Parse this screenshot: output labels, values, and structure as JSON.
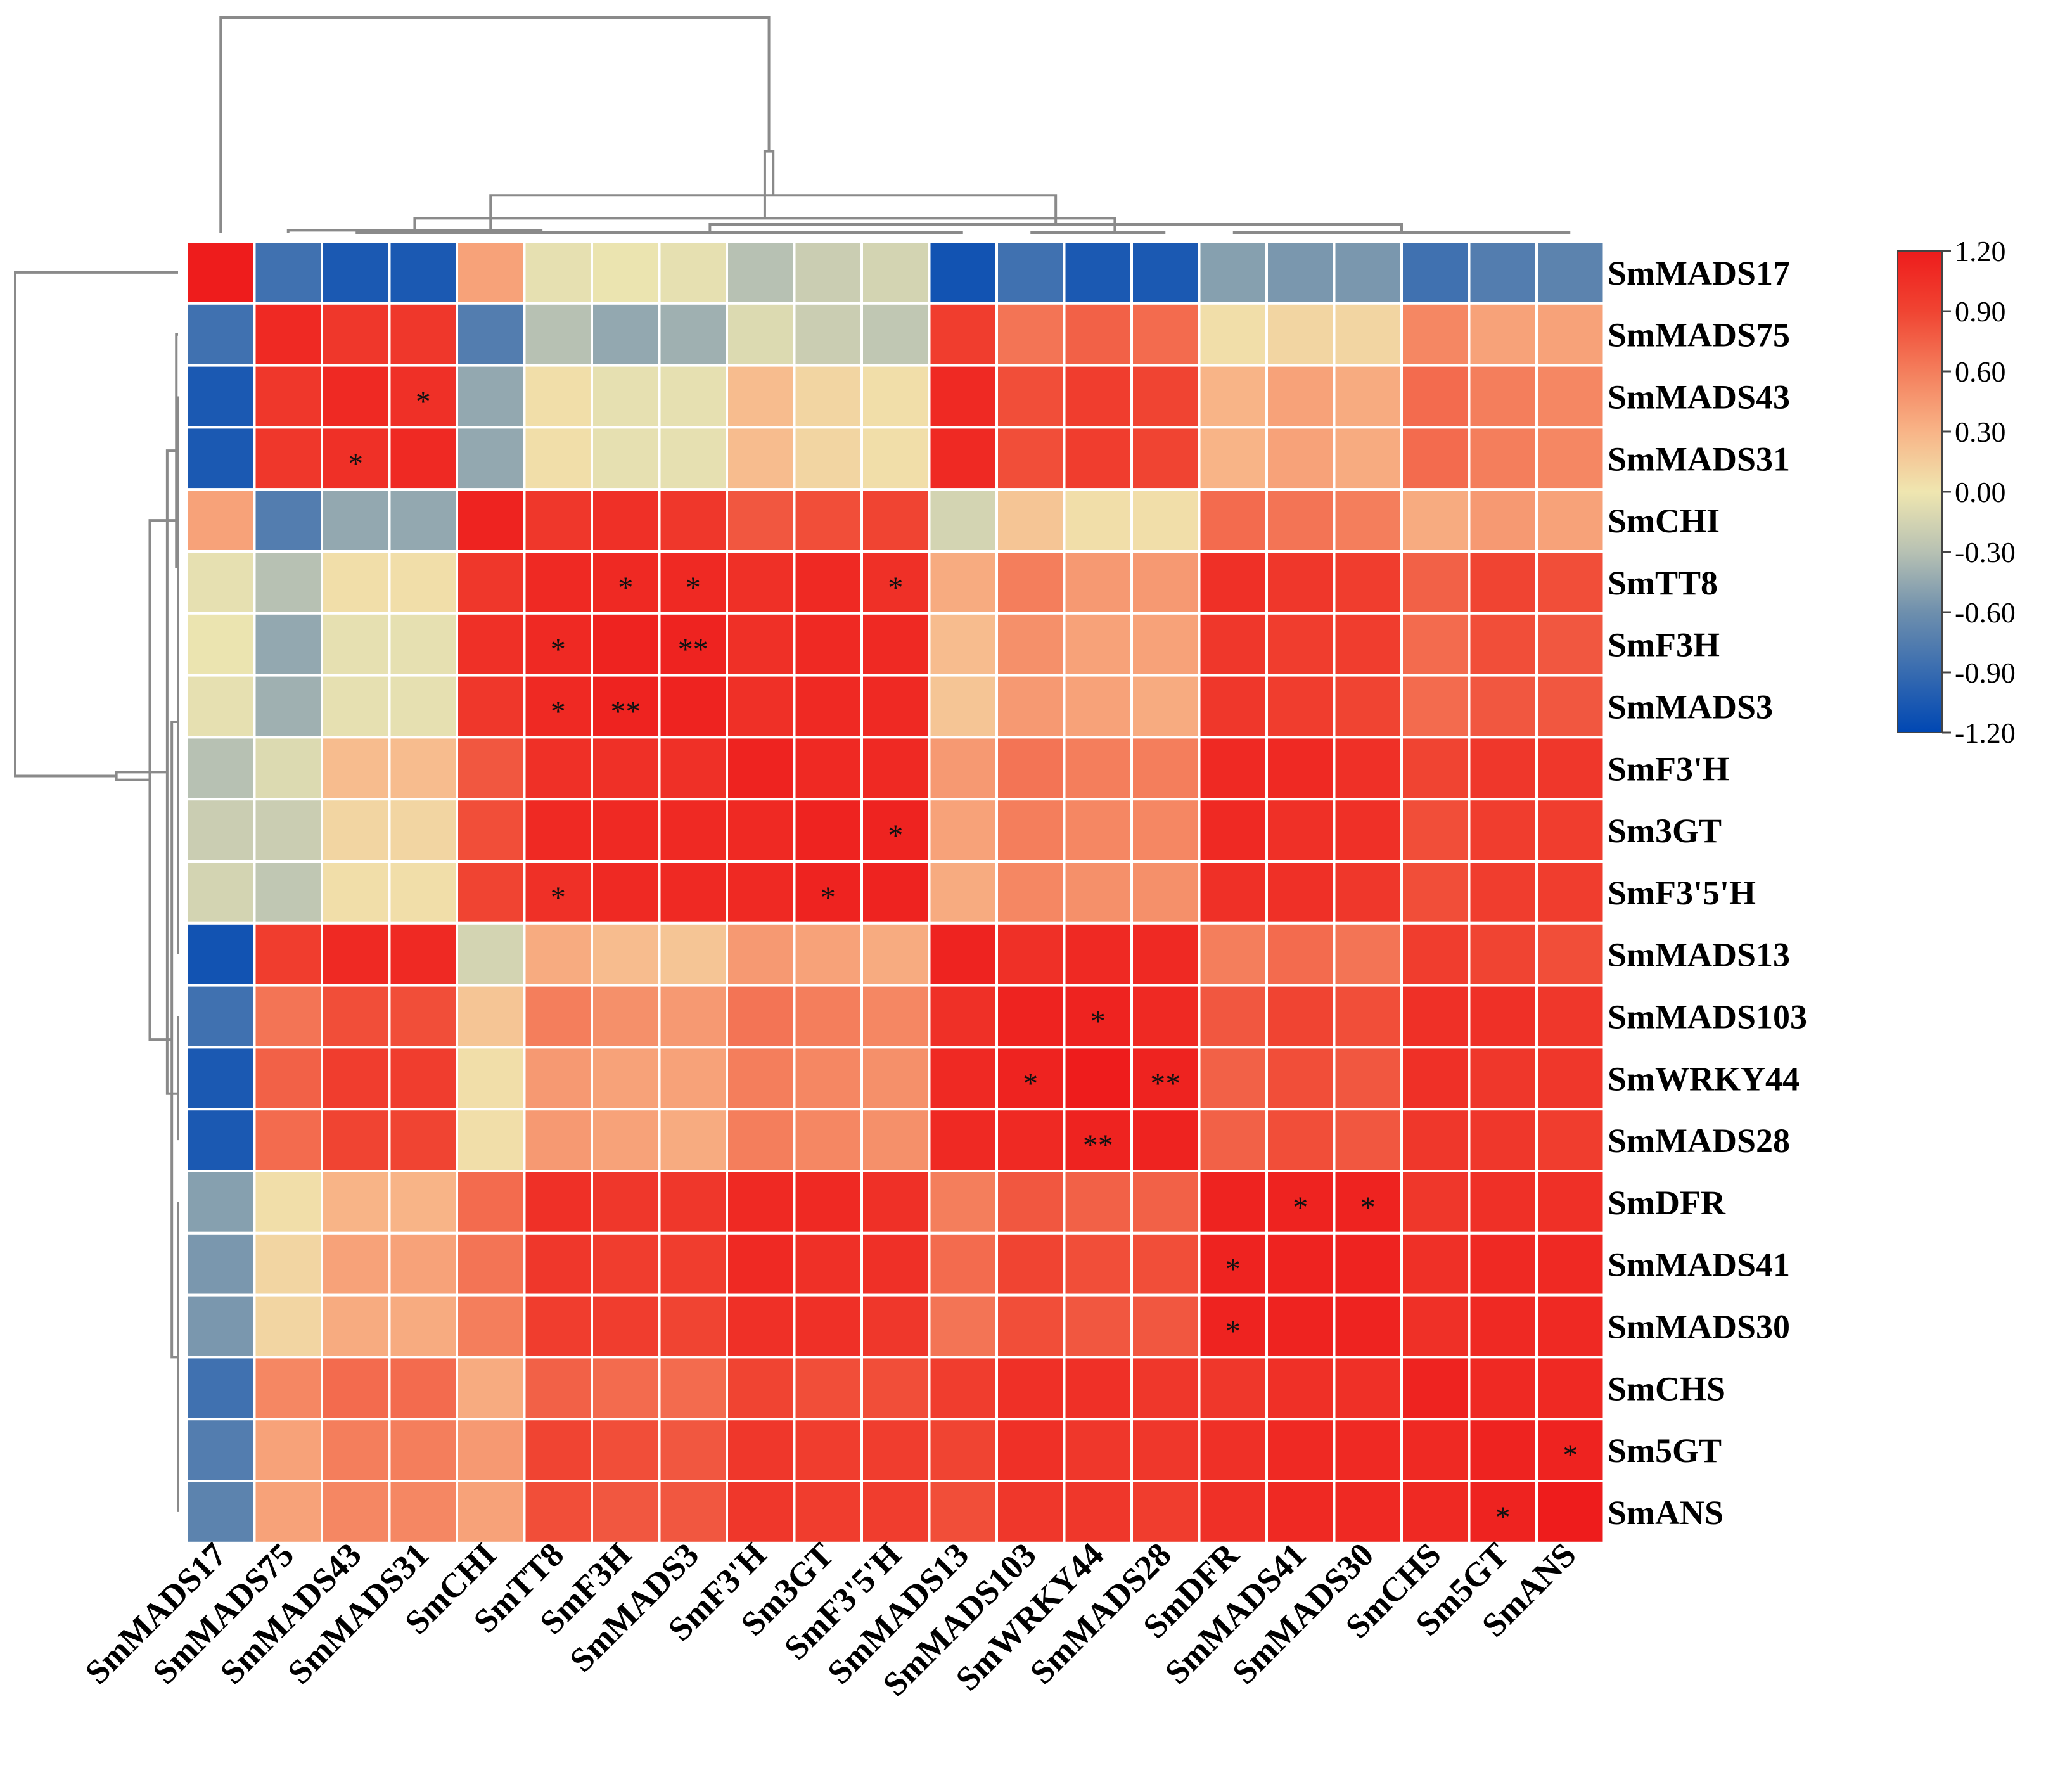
{
  "chart_data": {
    "type": "heatmap",
    "title": "",
    "labels": [
      "SmMADS17",
      "SmMADS75",
      "SmMADS43",
      "SmMADS31",
      "SmCHI",
      "SmTT8",
      "SmF3H",
      "SmMADS3",
      "SmF3'H",
      "Sm3GT",
      "SmF3'5'H",
      "SmMADS13",
      "SmMADS103",
      "SmWRKY44",
      "SmMADS28",
      "SmDFR",
      "SmMADS41",
      "SmMADS30",
      "SmCHS",
      "Sm5GT",
      "SmANS"
    ],
    "x_labels": [
      "SmMADS17",
      "SmMADS75",
      "SmMADS43",
      "SmMADS31",
      "SmCHI",
      "SmTT8",
      "SmF3H",
      "SmMADS3",
      "SmF3'H",
      "Sm3GT",
      "SmF3'5'H",
      "SmMADS13",
      "SmMADS103",
      "SmWRKY44",
      "SmMADS28",
      "SmDFR",
      "SmMADS41",
      "SmMADS30",
      "SmCHS",
      "Sm5GT",
      "SmANS"
    ],
    "y_labels": [
      "SmMADS17",
      "SmMADS75",
      "SmMADS43",
      "SmMADS31",
      "SmCHI",
      "SmTT8",
      "SmF3H",
      "SmMADS3",
      "SmF3'H",
      "Sm3GT",
      "SmF3'5'H",
      "SmMADS13",
      "SmMADS103",
      "SmWRKY44",
      "SmMADS28",
      "SmDFR",
      "SmMADS41",
      "SmMADS30",
      "SmCHS",
      "Sm5GT",
      "SmANS"
    ],
    "values": [
      [
        1.2,
        -0.85,
        -1.05,
        -1.05,
        0.4,
        -0.05,
        -0.02,
        -0.05,
        -0.3,
        -0.2,
        -0.15,
        -1.1,
        -0.85,
        -1.05,
        -1.05,
        -0.5,
        -0.55,
        -0.55,
        -0.85,
        -0.75,
        -0.7
      ],
      [
        -0.85,
        1.1,
        1.0,
        1.0,
        -0.75,
        -0.3,
        -0.45,
        -0.4,
        -0.1,
        -0.2,
        -0.25,
        0.95,
        0.65,
        0.75,
        0.7,
        0.05,
        0.1,
        0.1,
        0.55,
        0.4,
        0.4
      ],
      [
        -1.05,
        1.0,
        1.1,
        1.05,
        -0.45,
        0.05,
        -0.05,
        -0.05,
        0.25,
        0.1,
        0.05,
        1.1,
        0.85,
        0.95,
        0.9,
        0.3,
        0.4,
        0.35,
        0.7,
        0.6,
        0.55
      ],
      [
        -1.05,
        1.0,
        1.05,
        1.1,
        -0.45,
        0.05,
        -0.05,
        -0.05,
        0.25,
        0.1,
        0.05,
        1.1,
        0.85,
        0.95,
        0.9,
        0.3,
        0.4,
        0.35,
        0.7,
        0.6,
        0.55
      ],
      [
        0.4,
        -0.75,
        -0.45,
        -0.45,
        1.15,
        1.0,
        1.05,
        1.0,
        0.8,
        0.85,
        0.9,
        -0.15,
        0.2,
        0.05,
        0.05,
        0.7,
        0.65,
        0.6,
        0.35,
        0.45,
        0.4
      ],
      [
        -0.05,
        -0.3,
        0.05,
        0.05,
        1.0,
        1.1,
        1.1,
        1.1,
        1.05,
        1.1,
        1.05,
        0.35,
        0.6,
        0.45,
        0.45,
        1.05,
        1.0,
        0.95,
        0.75,
        0.9,
        0.85
      ],
      [
        -0.02,
        -0.45,
        -0.05,
        -0.05,
        1.05,
        1.1,
        1.15,
        1.15,
        1.05,
        1.1,
        1.1,
        0.25,
        0.5,
        0.4,
        0.4,
        1.0,
        0.95,
        0.95,
        0.7,
        0.85,
        0.8
      ],
      [
        -0.05,
        -0.4,
        -0.05,
        -0.05,
        1.0,
        1.1,
        1.15,
        1.15,
        1.05,
        1.1,
        1.1,
        0.2,
        0.45,
        0.4,
        0.35,
        1.0,
        0.95,
        0.9,
        0.7,
        0.8,
        0.8
      ],
      [
        -0.3,
        -0.1,
        0.25,
        0.25,
        0.8,
        1.05,
        1.05,
        1.05,
        1.15,
        1.1,
        1.1,
        0.45,
        0.65,
        0.6,
        0.6,
        1.1,
        1.1,
        1.05,
        0.9,
        1.0,
        1.0
      ],
      [
        -0.2,
        -0.2,
        0.1,
        0.1,
        0.85,
        1.1,
        1.1,
        1.1,
        1.1,
        1.15,
        1.15,
        0.4,
        0.6,
        0.55,
        0.55,
        1.1,
        1.05,
        1.05,
        0.85,
        0.95,
        0.95
      ],
      [
        -0.15,
        -0.25,
        0.05,
        0.05,
        0.9,
        1.05,
        1.1,
        1.1,
        1.1,
        1.15,
        1.15,
        0.35,
        0.55,
        0.5,
        0.5,
        1.05,
        1.05,
        1.0,
        0.85,
        0.95,
        0.95
      ],
      [
        -1.1,
        0.95,
        1.1,
        1.1,
        -0.15,
        0.35,
        0.25,
        0.2,
        0.45,
        0.4,
        0.35,
        1.15,
        1.05,
        1.1,
        1.1,
        0.6,
        0.7,
        0.65,
        0.95,
        0.9,
        0.85
      ],
      [
        -0.85,
        0.65,
        0.85,
        0.85,
        0.2,
        0.6,
        0.5,
        0.45,
        0.65,
        0.6,
        0.55,
        1.05,
        1.15,
        1.15,
        1.1,
        0.8,
        0.9,
        0.85,
        1.05,
        1.05,
        1.0
      ],
      [
        -1.05,
        0.75,
        0.95,
        0.95,
        0.05,
        0.45,
        0.4,
        0.4,
        0.6,
        0.55,
        0.5,
        1.1,
        1.15,
        1.2,
        1.15,
        0.75,
        0.85,
        0.8,
        1.05,
        1.0,
        1.0
      ],
      [
        -1.05,
        0.7,
        0.9,
        0.9,
        0.05,
        0.45,
        0.4,
        0.35,
        0.6,
        0.55,
        0.5,
        1.1,
        1.1,
        1.15,
        1.15,
        0.75,
        0.85,
        0.8,
        1.0,
        1.0,
        0.95
      ],
      [
        -0.5,
        0.05,
        0.3,
        0.3,
        0.7,
        1.05,
        1.0,
        1.0,
        1.1,
        1.1,
        1.05,
        0.6,
        0.8,
        0.75,
        0.75,
        1.15,
        1.15,
        1.15,
        1.0,
        1.05,
        1.05
      ],
      [
        -0.55,
        0.1,
        0.4,
        0.4,
        0.65,
        1.0,
        0.95,
        0.95,
        1.1,
        1.05,
        1.05,
        0.7,
        0.9,
        0.85,
        0.85,
        1.15,
        1.15,
        1.15,
        1.05,
        1.1,
        1.1
      ],
      [
        -0.55,
        0.1,
        0.35,
        0.35,
        0.6,
        0.95,
        0.95,
        0.9,
        1.05,
        1.05,
        1.0,
        0.65,
        0.85,
        0.8,
        0.8,
        1.15,
        1.15,
        1.15,
        1.05,
        1.1,
        1.1
      ],
      [
        -0.85,
        0.55,
        0.7,
        0.7,
        0.35,
        0.75,
        0.7,
        0.7,
        0.9,
        0.85,
        0.85,
        0.95,
        1.05,
        1.05,
        1.0,
        1.0,
        1.05,
        1.05,
        1.15,
        1.1,
        1.1
      ],
      [
        -0.75,
        0.4,
        0.6,
        0.6,
        0.45,
        0.9,
        0.85,
        0.8,
        1.0,
        0.95,
        0.95,
        0.9,
        1.05,
        1.0,
        1.0,
        1.05,
        1.1,
        1.1,
        1.1,
        1.15,
        1.15
      ],
      [
        -0.7,
        0.4,
        0.55,
        0.55,
        0.4,
        0.85,
        0.8,
        0.8,
        1.0,
        0.95,
        0.95,
        0.85,
        1.0,
        1.0,
        0.95,
        1.05,
        1.1,
        1.1,
        1.1,
        1.15,
        1.2
      ]
    ],
    "significance": [
      {
        "row": "SmMADS43",
        "col": "SmMADS31",
        "mark": "*"
      },
      {
        "row": "SmMADS31",
        "col": "SmMADS43",
        "mark": "*"
      },
      {
        "row": "SmTT8",
        "col": "SmF3H",
        "mark": "*"
      },
      {
        "row": "SmTT8",
        "col": "SmMADS3",
        "mark": "*"
      },
      {
        "row": "SmTT8",
        "col": "SmF3'5'H",
        "mark": "*"
      },
      {
        "row": "SmF3H",
        "col": "SmTT8",
        "mark": "*"
      },
      {
        "row": "SmF3H",
        "col": "SmMADS3",
        "mark": "**"
      },
      {
        "row": "SmMADS3",
        "col": "SmTT8",
        "mark": "*"
      },
      {
        "row": "SmMADS3",
        "col": "SmF3H",
        "mark": "**"
      },
      {
        "row": "Sm3GT",
        "col": "SmF3'5'H",
        "mark": "*"
      },
      {
        "row": "SmF3'5'H",
        "col": "SmTT8",
        "mark": "*"
      },
      {
        "row": "SmF3'5'H",
        "col": "Sm3GT",
        "mark": "*"
      },
      {
        "row": "SmMADS103",
        "col": "SmWRKY44",
        "mark": "*"
      },
      {
        "row": "SmWRKY44",
        "col": "SmMADS103",
        "mark": "*"
      },
      {
        "row": "SmWRKY44",
        "col": "SmMADS28",
        "mark": "**"
      },
      {
        "row": "SmMADS28",
        "col": "SmWRKY44",
        "mark": "**"
      },
      {
        "row": "SmDFR",
        "col": "SmMADS41",
        "mark": "*"
      },
      {
        "row": "SmDFR",
        "col": "SmMADS30",
        "mark": "*"
      },
      {
        "row": "SmMADS41",
        "col": "SmDFR",
        "mark": "*"
      },
      {
        "row": "SmMADS30",
        "col": "SmDFR",
        "mark": "*"
      },
      {
        "row": "Sm5GT",
        "col": "SmANS",
        "mark": "*"
      },
      {
        "row": "SmANS",
        "col": "Sm5GT",
        "mark": "*"
      }
    ],
    "color_scale": {
      "range": [
        -1.2,
        1.2
      ],
      "ticks": [
        "1.20",
        "0.90",
        "0.60",
        "0.30",
        "0.00",
        "-0.30",
        "-0.60",
        "-0.90",
        "-1.20"
      ],
      "stops": [
        {
          "value": -1.2,
          "color": "#0047b3"
        },
        {
          "value": -0.6,
          "color": "#6e8fad"
        },
        {
          "value": -0.3,
          "color": "#b7c1b3"
        },
        {
          "value": 0.0,
          "color": "#efe6b0"
        },
        {
          "value": 0.3,
          "color": "#f8b487"
        },
        {
          "value": 0.6,
          "color": "#f47e5c"
        },
        {
          "value": 0.9,
          "color": "#f04432"
        },
        {
          "value": 1.2,
          "color": "#ee1c1c"
        }
      ]
    },
    "legend_position": "right",
    "column_dendrogram": true,
    "row_dendrogram": true
  }
}
